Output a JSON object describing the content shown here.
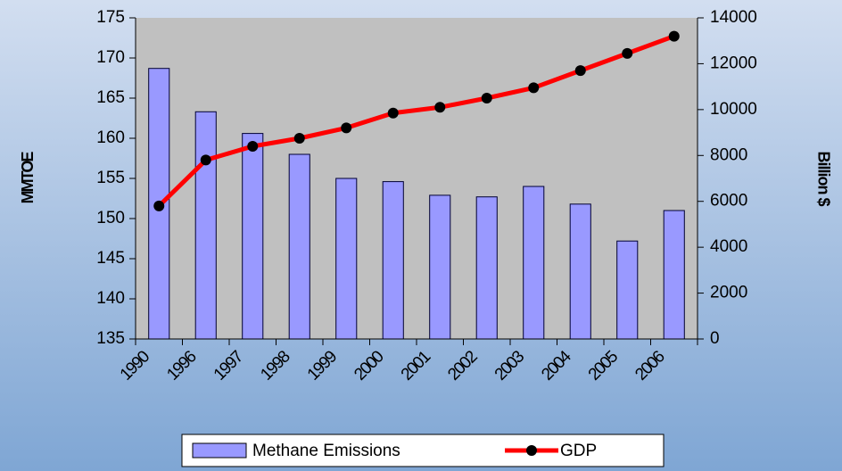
{
  "chart_data": {
    "type": "combo",
    "categories": [
      "1990",
      "1996",
      "1997",
      "1998",
      "1999",
      "2000",
      "2001",
      "2002",
      "2003",
      "2004",
      "2005",
      "2006"
    ],
    "series": [
      {
        "name": "Methane Emissions",
        "type": "bar",
        "color": "#9999ff",
        "values": [
          168.7,
          163.3,
          160.6,
          158.0,
          155.0,
          154.6,
          152.9,
          152.7,
          154.0,
          151.8,
          147.2,
          151.0
        ]
      },
      {
        "name": "GDP",
        "type": "line",
        "axis": "y2",
        "color": "#ff0000",
        "values": [
          5800,
          7800,
          8400,
          8750,
          9200,
          9850,
          10100,
          10500,
          10950,
          11700,
          12450,
          13200
        ]
      }
    ],
    "ylabel": "MMTOE",
    "y2label": "Billion $",
    "ylim": [
      135,
      175
    ],
    "yticks": [
      135,
      140,
      145,
      150,
      155,
      160,
      165,
      170,
      175
    ],
    "y2lim": [
      0,
      14000
    ],
    "y2ticks": [
      0,
      2000,
      4000,
      6000,
      8000,
      10000,
      12000,
      14000
    ]
  }
}
